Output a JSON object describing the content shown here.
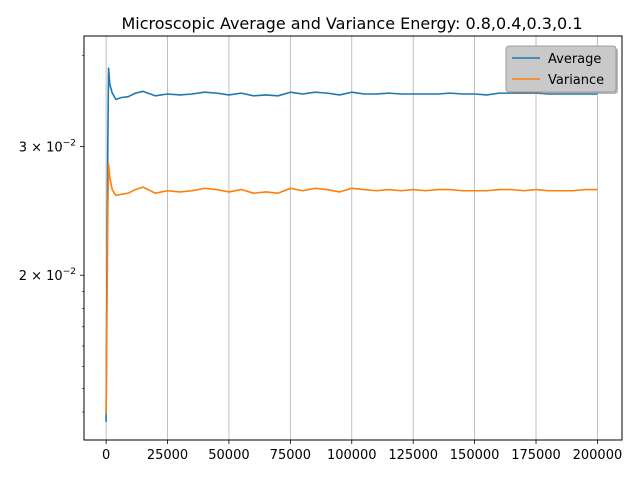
{
  "chart_data": {
    "type": "line",
    "title": "Microscopic Average and Variance Energy: 0.8,0.4,0.3,0.1",
    "xlabel": "",
    "ylabel": "",
    "xlim": [
      -9000,
      210000
    ],
    "ylim": [
      0.0119,
      0.0425
    ],
    "yscale": "log",
    "x_ticks": [
      0,
      25000,
      50000,
      75000,
      100000,
      125000,
      150000,
      175000,
      200000
    ],
    "x_tick_labels": [
      "0",
      "25000",
      "50000",
      "75000",
      "100000",
      "125000",
      "150000",
      "175000",
      "200000"
    ],
    "y_ticks": [
      0.02,
      0.03
    ],
    "y_tick_labels": [
      {
        "base": "2 × 10",
        "exp": "−2"
      },
      {
        "base": "3 × 10",
        "exp": "−2"
      }
    ],
    "grid": "vertical",
    "legend_placement": "top-right",
    "series": [
      {
        "name": "Average",
        "color": "#1f77b4",
        "points": [
          [
            0,
            0.0126
          ],
          [
            300,
            0.019
          ],
          [
            700,
            0.0305
          ],
          [
            1000,
            0.0384
          ],
          [
            1500,
            0.0365
          ],
          [
            2500,
            0.0355
          ],
          [
            4000,
            0.0348
          ],
          [
            6000,
            0.035
          ],
          [
            9000,
            0.0351
          ],
          [
            12000,
            0.0355
          ],
          [
            15000,
            0.0357
          ],
          [
            20000,
            0.0352
          ],
          [
            25000,
            0.0354
          ],
          [
            30000,
            0.0353
          ],
          [
            35000,
            0.0354
          ],
          [
            40000,
            0.0356
          ],
          [
            45000,
            0.0355
          ],
          [
            50000,
            0.0353
          ],
          [
            55000,
            0.0355
          ],
          [
            60000,
            0.0352
          ],
          [
            65000,
            0.0353
          ],
          [
            70000,
            0.0352
          ],
          [
            75000,
            0.0356
          ],
          [
            80000,
            0.0354
          ],
          [
            85000,
            0.0356
          ],
          [
            90000,
            0.0355
          ],
          [
            95000,
            0.0353
          ],
          [
            100000,
            0.0356
          ],
          [
            105000,
            0.0354
          ],
          [
            110000,
            0.0354
          ],
          [
            115000,
            0.0355
          ],
          [
            120000,
            0.0354
          ],
          [
            125000,
            0.0354
          ],
          [
            130000,
            0.0354
          ],
          [
            135000,
            0.0354
          ],
          [
            140000,
            0.0355
          ],
          [
            145000,
            0.0354
          ],
          [
            150000,
            0.0354
          ],
          [
            155000,
            0.0353
          ],
          [
            160000,
            0.0355
          ],
          [
            165000,
            0.0355
          ],
          [
            170000,
            0.0355
          ],
          [
            175000,
            0.0355
          ],
          [
            180000,
            0.0354
          ],
          [
            185000,
            0.0354
          ],
          [
            190000,
            0.0354
          ],
          [
            195000,
            0.0354
          ],
          [
            200000,
            0.0354
          ]
        ]
      },
      {
        "name": "Variance",
        "color": "#ff7f0e",
        "points": [
          [
            0,
            0.0129
          ],
          [
            300,
            0.017
          ],
          [
            700,
            0.0245
          ],
          [
            1000,
            0.0284
          ],
          [
            1500,
            0.0272
          ],
          [
            2500,
            0.0262
          ],
          [
            4000,
            0.0257
          ],
          [
            6000,
            0.0258
          ],
          [
            9000,
            0.0259
          ],
          [
            12000,
            0.0262
          ],
          [
            15000,
            0.0264
          ],
          [
            20000,
            0.0259
          ],
          [
            25000,
            0.0261
          ],
          [
            30000,
            0.026
          ],
          [
            35000,
            0.0261
          ],
          [
            40000,
            0.0263
          ],
          [
            45000,
            0.0262
          ],
          [
            50000,
            0.026
          ],
          [
            55000,
            0.0262
          ],
          [
            60000,
            0.0259
          ],
          [
            65000,
            0.026
          ],
          [
            70000,
            0.0259
          ],
          [
            75000,
            0.0263
          ],
          [
            80000,
            0.0261
          ],
          [
            85000,
            0.0263
          ],
          [
            90000,
            0.0262
          ],
          [
            95000,
            0.026
          ],
          [
            100000,
            0.0263
          ],
          [
            105000,
            0.0262
          ],
          [
            110000,
            0.0261
          ],
          [
            115000,
            0.0262
          ],
          [
            120000,
            0.0261
          ],
          [
            125000,
            0.0262
          ],
          [
            130000,
            0.0261
          ],
          [
            135000,
            0.0262
          ],
          [
            140000,
            0.0262
          ],
          [
            145000,
            0.0261
          ],
          [
            150000,
            0.0261
          ],
          [
            155000,
            0.0261
          ],
          [
            160000,
            0.0262
          ],
          [
            165000,
            0.0262
          ],
          [
            170000,
            0.0261
          ],
          [
            175000,
            0.0262
          ],
          [
            180000,
            0.0261
          ],
          [
            185000,
            0.0261
          ],
          [
            190000,
            0.0261
          ],
          [
            195000,
            0.0262
          ],
          [
            200000,
            0.0262
          ]
        ]
      }
    ]
  }
}
